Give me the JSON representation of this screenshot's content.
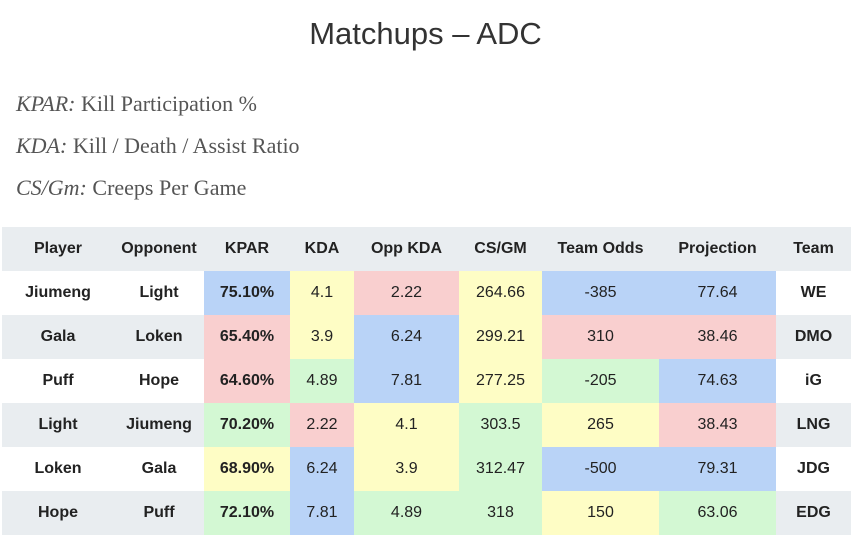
{
  "title": "Matchups – ADC",
  "definitions": [
    {
      "term": "KPAR:",
      "meaning": "Kill Participation %"
    },
    {
      "term": "KDA:",
      "meaning": "Kill / Death / Assist Ratio"
    },
    {
      "term": "CS/Gm:",
      "meaning": "Creeps Per Game"
    }
  ],
  "colors": {
    "blue": "#b9d3f7",
    "red": "#f9cfcf",
    "yellow": "#fefdc5",
    "green": "#d3f8d3",
    "header_bg": "#e9edf0"
  },
  "table": {
    "headers": [
      "Player",
      "Opponent",
      "KPAR",
      "KDA",
      "Opp KDA",
      "CS/GM",
      "Team Odds",
      "Projection",
      "Team"
    ],
    "rows": [
      {
        "player": "Jiumeng",
        "opponent": "Light",
        "kpar": "75.10%",
        "kda": "4.1",
        "opp_kda": "2.22",
        "cs_gm": "264.66",
        "team_odds": "-385",
        "projection": "77.64",
        "team": "WE",
        "shade": {
          "kpar": "blue",
          "kda": "yellow",
          "opp_kda": "red",
          "cs_gm": "yellow",
          "team_odds": "blue",
          "projection": "blue"
        }
      },
      {
        "player": "Gala",
        "opponent": "Loken",
        "kpar": "65.40%",
        "kda": "3.9",
        "opp_kda": "6.24",
        "cs_gm": "299.21",
        "team_odds": "310",
        "projection": "38.46",
        "team": "DMO",
        "shade": {
          "kpar": "red",
          "kda": "yellow",
          "opp_kda": "blue",
          "cs_gm": "yellow",
          "team_odds": "red",
          "projection": "red"
        }
      },
      {
        "player": "Puff",
        "opponent": "Hope",
        "kpar": "64.60%",
        "kda": "4.89",
        "opp_kda": "7.81",
        "cs_gm": "277.25",
        "team_odds": "-205",
        "projection": "74.63",
        "team": "iG",
        "shade": {
          "kpar": "red",
          "kda": "green",
          "opp_kda": "blue",
          "cs_gm": "yellow",
          "team_odds": "green",
          "projection": "blue"
        }
      },
      {
        "player": "Light",
        "opponent": "Jiumeng",
        "kpar": "70.20%",
        "kda": "2.22",
        "opp_kda": "4.1",
        "cs_gm": "303.5",
        "team_odds": "265",
        "projection": "38.43",
        "team": "LNG",
        "shade": {
          "kpar": "green",
          "kda": "red",
          "opp_kda": "yellow",
          "cs_gm": "green",
          "team_odds": "yellow",
          "projection": "red"
        }
      },
      {
        "player": "Loken",
        "opponent": "Gala",
        "kpar": "68.90%",
        "kda": "6.24",
        "opp_kda": "3.9",
        "cs_gm": "312.47",
        "team_odds": "-500",
        "projection": "79.31",
        "team": "JDG",
        "shade": {
          "kpar": "yellow",
          "kda": "blue",
          "opp_kda": "yellow",
          "cs_gm": "green",
          "team_odds": "blue",
          "projection": "blue"
        }
      },
      {
        "player": "Hope",
        "opponent": "Puff",
        "kpar": "72.10%",
        "kda": "7.81",
        "opp_kda": "4.89",
        "cs_gm": "318",
        "team_odds": "150",
        "projection": "63.06",
        "team": "EDG",
        "shade": {
          "kpar": "green",
          "kda": "blue",
          "opp_kda": "green",
          "cs_gm": "green",
          "team_odds": "yellow",
          "projection": "green"
        }
      }
    ]
  }
}
